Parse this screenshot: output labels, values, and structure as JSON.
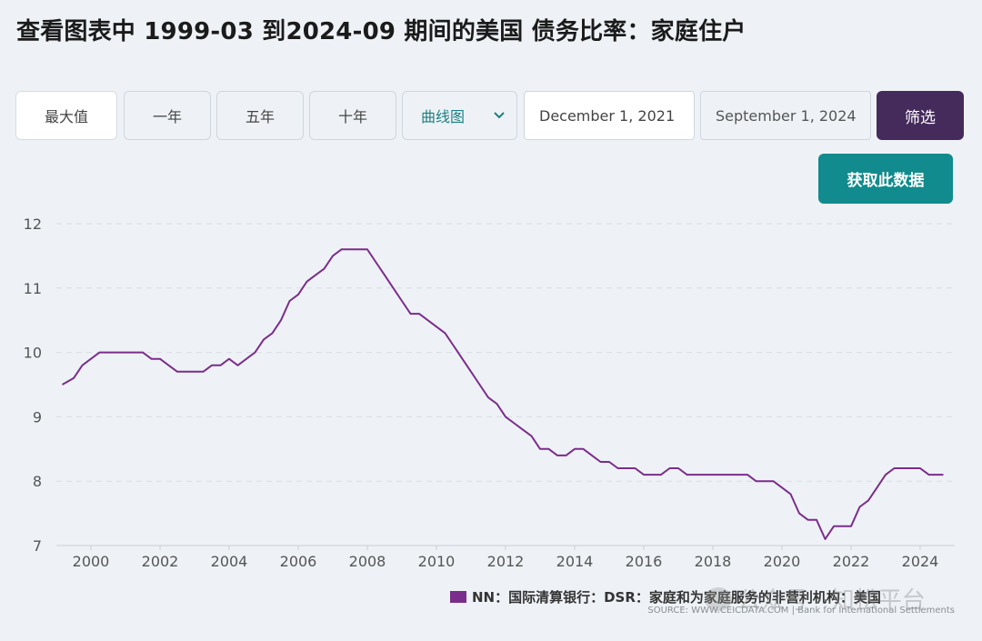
{
  "title": "查看图表中 1999-03 到2024-09 期间的美国 债务比率：家庭住户",
  "toolbar": {
    "range_buttons": [
      "最大值",
      "一年",
      "五年",
      "十年"
    ],
    "chart_type_select": "曲线图",
    "date_from": "December 1, 2021",
    "date_to": "September 1, 2024",
    "filter_label": "筛选",
    "fetch_label": "获取此数据"
  },
  "colors": {
    "line": "#7b2d8b",
    "filter_button": "#452a5c",
    "fetch_button": "#118b8d",
    "grid": "#d9dee4"
  },
  "legend": {
    "label": "NN：国际清算银行：DSR：家庭和为家庭服务的非营利机构：美国"
  },
  "source": "SOURCE: WWW.CEICDATA.COM | Bank for International Settlements",
  "watermark": "公众号 · 知松平台",
  "chart_data": {
    "type": "line",
    "title": "",
    "xlabel": "",
    "ylabel": "",
    "ylim": [
      7,
      12
    ],
    "xlim": [
      1999,
      2025
    ],
    "y_ticks": [
      "7",
      "8",
      "9",
      "10",
      "11",
      "12"
    ],
    "x_ticks": [
      "2000",
      "2002",
      "2004",
      "2006",
      "2008",
      "2010",
      "2012",
      "2014",
      "2016",
      "2018",
      "2020",
      "2022",
      "2024"
    ],
    "grid": "horizontal dashed",
    "legend_position": "bottom-right",
    "series": [
      {
        "name": "NN：国际清算银行：DSR：家庭和为家庭服务的非营利机构：美国",
        "x": [
          1999.17,
          1999.5,
          1999.75,
          2000.0,
          2000.25,
          2000.5,
          2000.75,
          2001.0,
          2001.25,
          2001.5,
          2001.75,
          2002.0,
          2002.25,
          2002.5,
          2002.75,
          2003.0,
          2003.25,
          2003.5,
          2003.75,
          2004.0,
          2004.25,
          2004.5,
          2004.75,
          2005.0,
          2005.25,
          2005.5,
          2005.75,
          2006.0,
          2006.25,
          2006.5,
          2006.75,
          2007.0,
          2007.25,
          2007.5,
          2007.75,
          2008.0,
          2008.25,
          2008.5,
          2008.75,
          2009.0,
          2009.25,
          2009.5,
          2009.75,
          2010.0,
          2010.25,
          2010.5,
          2010.75,
          2011.0,
          2011.25,
          2011.5,
          2011.75,
          2012.0,
          2012.25,
          2012.5,
          2012.75,
          2013.0,
          2013.25,
          2013.5,
          2013.75,
          2014.0,
          2014.25,
          2014.5,
          2014.75,
          2015.0,
          2015.25,
          2015.5,
          2015.75,
          2016.0,
          2016.25,
          2016.5,
          2016.75,
          2017.0,
          2017.25,
          2017.5,
          2017.75,
          2018.0,
          2018.25,
          2018.5,
          2018.75,
          2019.0,
          2019.25,
          2019.5,
          2019.75,
          2020.0,
          2020.25,
          2020.5,
          2020.75,
          2021.0,
          2021.25,
          2021.5,
          2021.75,
          2022.0,
          2022.25,
          2022.5,
          2022.75,
          2023.0,
          2023.25,
          2023.5,
          2023.75,
          2024.0,
          2024.25,
          2024.5,
          2024.67
        ],
        "values": [
          9.5,
          9.6,
          9.8,
          9.9,
          10.0,
          10.0,
          10.0,
          10.0,
          10.0,
          10.0,
          9.9,
          9.9,
          9.8,
          9.7,
          9.7,
          9.7,
          9.7,
          9.8,
          9.8,
          9.9,
          9.8,
          9.9,
          10.0,
          10.2,
          10.3,
          10.5,
          10.8,
          10.9,
          11.1,
          11.2,
          11.3,
          11.5,
          11.6,
          11.6,
          11.6,
          11.6,
          11.4,
          11.2,
          11.0,
          10.8,
          10.6,
          10.6,
          10.5,
          10.4,
          10.3,
          10.1,
          9.9,
          9.7,
          9.5,
          9.3,
          9.2,
          9.0,
          8.9,
          8.8,
          8.7,
          8.5,
          8.5,
          8.4,
          8.4,
          8.5,
          8.5,
          8.4,
          8.3,
          8.3,
          8.2,
          8.2,
          8.2,
          8.1,
          8.1,
          8.1,
          8.2,
          8.2,
          8.1,
          8.1,
          8.1,
          8.1,
          8.1,
          8.1,
          8.1,
          8.1,
          8.0,
          8.0,
          8.0,
          7.9,
          7.8,
          7.5,
          7.4,
          7.4,
          7.1,
          7.3,
          7.3,
          7.3,
          7.6,
          7.7,
          7.9,
          8.1,
          8.2,
          8.2,
          8.2,
          8.2,
          8.1,
          8.1,
          8.1
        ]
      }
    ]
  }
}
